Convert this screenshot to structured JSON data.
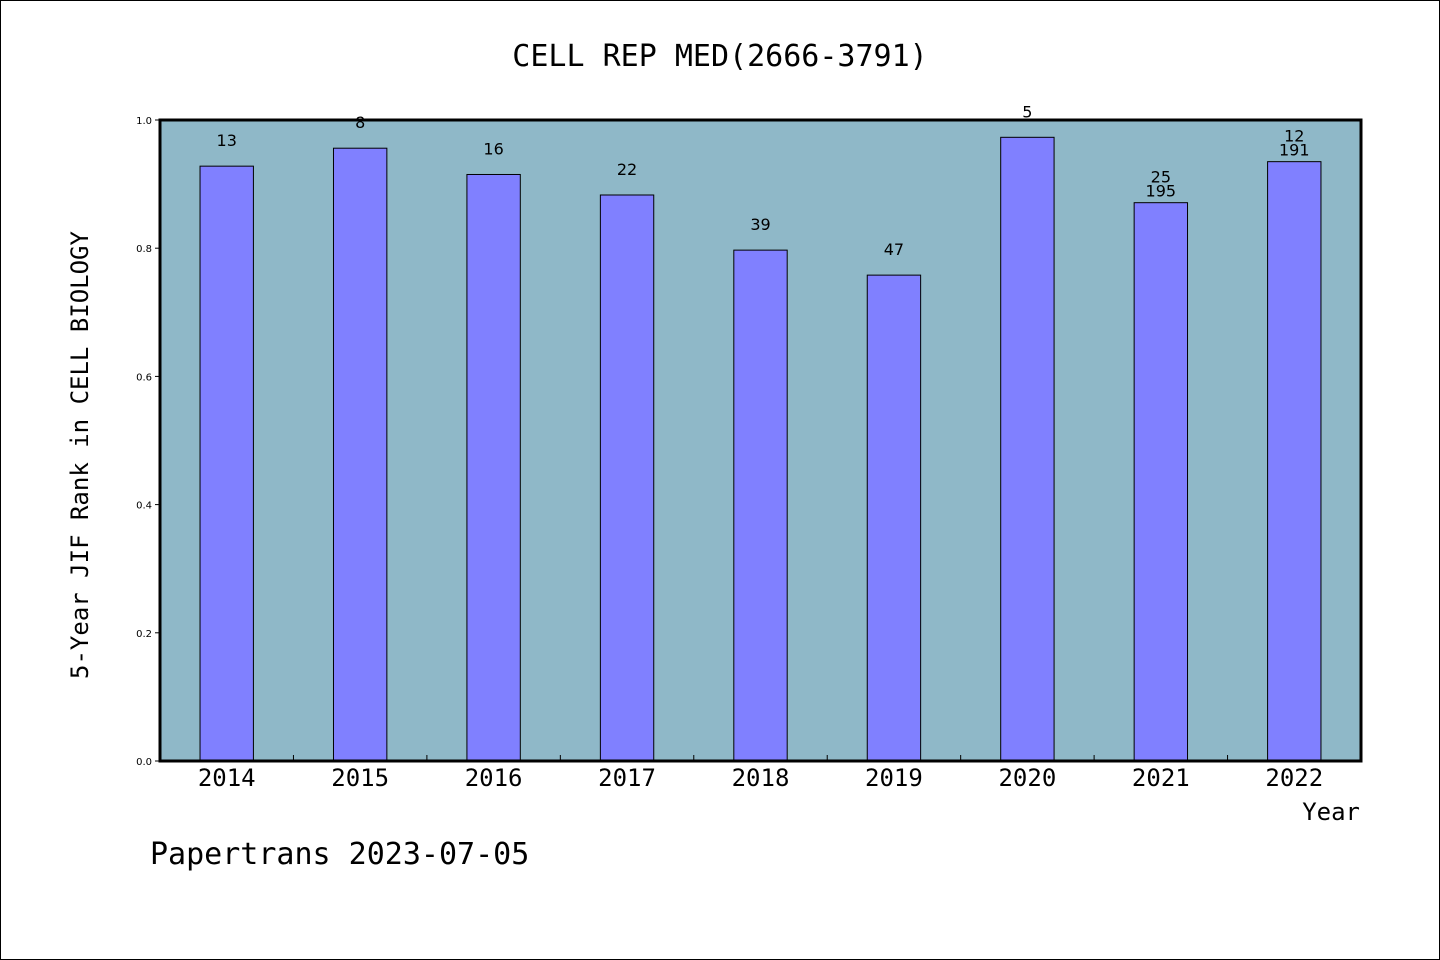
{
  "chart_data": {
    "type": "bar",
    "title": "CELL REP MED(2666-3791)",
    "xlabel": "Year",
    "ylabel": "5-Year JIF Rank in CELL BIOLOGY",
    "ylim": [
      0,
      1.0
    ],
    "yticks": [
      "0.0",
      "0.2",
      "0.4",
      "0.6",
      "0.8",
      "1.0"
    ],
    "categories": [
      "2014",
      "2015",
      "2016",
      "2017",
      "2018",
      "2019",
      "2020",
      "2021",
      "2022"
    ],
    "values": [
      0.928,
      0.956,
      0.915,
      0.883,
      0.797,
      0.758,
      0.973,
      0.871,
      0.935
    ],
    "labels": [
      [
        "13"
      ],
      [
        "8"
      ],
      [
        "16"
      ],
      [
        "22"
      ],
      [
        "39"
      ],
      [
        "47"
      ],
      [
        "5"
      ],
      [
        "25",
        "195"
      ],
      [
        "12",
        "191"
      ]
    ],
    "grid": false,
    "colors": {
      "plot_background": "#8fb8c8",
      "bar_fill": "#8080ff",
      "bar_edge": "#000000"
    }
  },
  "footer": {
    "text": "Papertrans 2023-07-05"
  }
}
